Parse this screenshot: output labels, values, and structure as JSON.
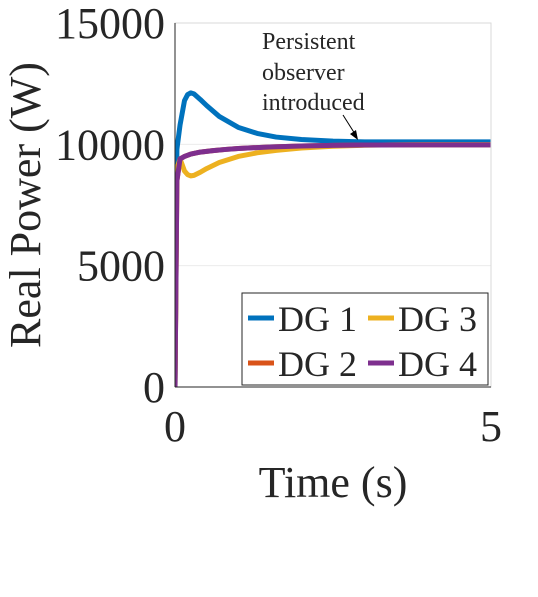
{
  "chart_data": {
    "type": "line",
    "xlabel": "Time (s)",
    "ylabel": "Real Power (W)",
    "xlim": [
      0,
      5
    ],
    "ylim": [
      0,
      15000
    ],
    "xticks": [
      "0",
      "5"
    ],
    "yticks": [
      "0",
      "5000",
      "10000",
      "15000"
    ],
    "grid": true,
    "legend": {
      "placement": "bottom-right",
      "columns": 2
    },
    "annotation": {
      "lines": [
        "Persistent",
        "observer",
        "introduced"
      ],
      "x": 3.0,
      "y": 10000
    },
    "series": [
      {
        "name": "DG 1",
        "color": "#0072BD",
        "x": [
          0,
          0.03,
          0.08,
          0.15,
          0.2,
          0.25,
          0.3,
          0.4,
          0.5,
          0.7,
          1.0,
          1.3,
          1.6,
          2.0,
          2.5,
          3.0,
          3.5,
          4.0,
          4.5,
          5.0
        ],
        "y": [
          0,
          9800,
          10800,
          11800,
          12050,
          12120,
          12080,
          11850,
          11600,
          11150,
          10700,
          10450,
          10300,
          10200,
          10130,
          10100,
          10100,
          10100,
          10100,
          10100
        ]
      },
      {
        "name": "DG 2",
        "color": "#D95319",
        "x": [
          0,
          0.03,
          0.08,
          0.15,
          0.25,
          0.4,
          0.6,
          0.8,
          1.0,
          1.5,
          2.0,
          2.5,
          3.0,
          4.0,
          5.0
        ],
        "y": [
          0,
          8500,
          9400,
          9500,
          9600,
          9680,
          9740,
          9790,
          9830,
          9890,
          9930,
          9955,
          9970,
          9980,
          9980
        ]
      },
      {
        "name": "DG 3",
        "color": "#EDB120",
        "x": [
          0,
          0.03,
          0.08,
          0.15,
          0.2,
          0.25,
          0.3,
          0.4,
          0.5,
          0.7,
          1.0,
          1.3,
          1.6,
          2.0,
          2.5,
          3.0,
          3.5,
          4.0,
          4.5,
          5.0
        ],
        "y": [
          0,
          9000,
          9400,
          8900,
          8750,
          8700,
          8720,
          8850,
          9000,
          9250,
          9500,
          9650,
          9750,
          9850,
          9920,
          9960,
          9980,
          9990,
          9990,
          9990
        ]
      },
      {
        "name": "DG 4",
        "color": "#7E2F8E",
        "x": [
          0,
          0.03,
          0.08,
          0.15,
          0.25,
          0.4,
          0.6,
          0.8,
          1.0,
          1.5,
          2.0,
          2.5,
          3.0,
          4.0,
          5.0
        ],
        "y": [
          0,
          8500,
          9400,
          9500,
          9600,
          9680,
          9740,
          9790,
          9830,
          9890,
          9930,
          9955,
          9970,
          9980,
          9980
        ]
      }
    ]
  }
}
